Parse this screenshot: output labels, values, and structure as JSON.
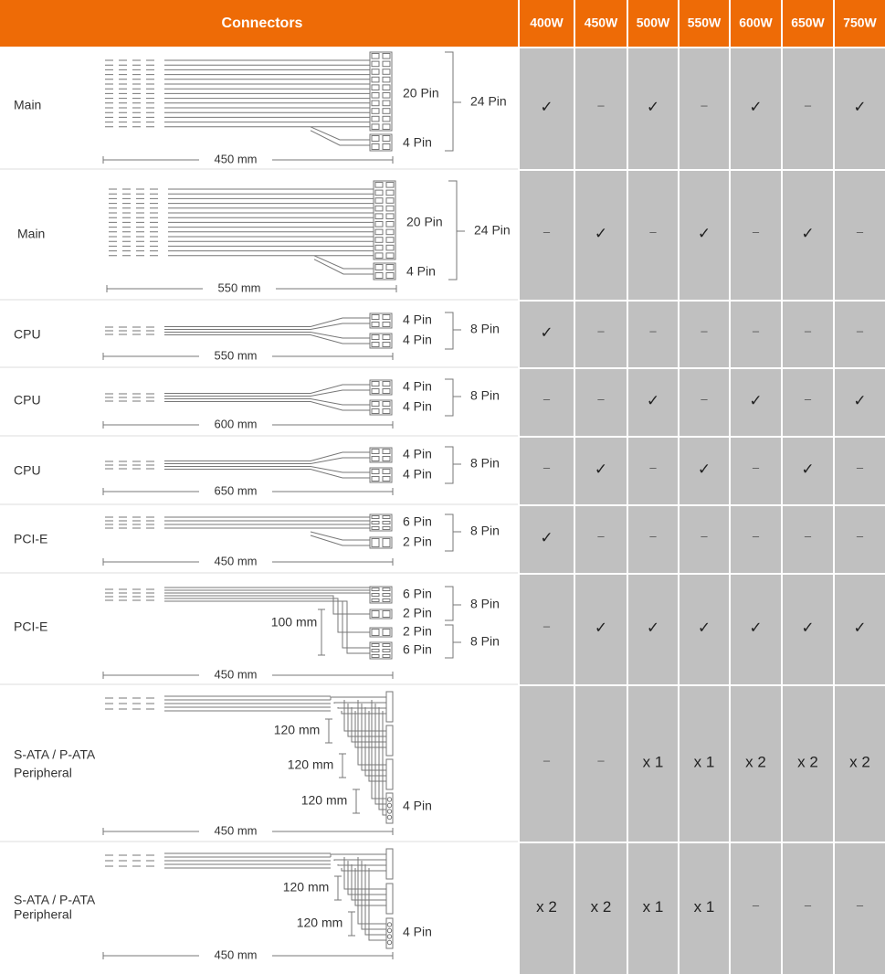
{
  "header": {
    "connectors": "Connectors",
    "models": [
      "400W",
      "450W",
      "500W",
      "550W",
      "600W",
      "650W",
      "750W"
    ]
  },
  "rows": [
    {
      "name": [
        "Main"
      ],
      "length": "450 mm",
      "pins": [
        "20 Pin",
        "4 Pin"
      ],
      "groups": [
        "24 Pin"
      ],
      "cells": [
        "✓",
        "–",
        "✓",
        "–",
        "✓",
        "–",
        "✓"
      ]
    },
    {
      "name": [
        "Main"
      ],
      "length": "550 mm",
      "pins": [
        "20 Pin",
        "4 Pin"
      ],
      "groups": [
        "24 Pin"
      ],
      "cells": [
        "–",
        "✓",
        "–",
        "✓",
        "–",
        "✓",
        "–"
      ]
    },
    {
      "name": [
        "CPU"
      ],
      "length": "550 mm",
      "pins": [
        "4 Pin",
        "4 Pin"
      ],
      "groups": [
        "8 Pin"
      ],
      "cells": [
        "✓",
        "–",
        "–",
        "–",
        "–",
        "–",
        "–"
      ]
    },
    {
      "name": [
        "CPU"
      ],
      "length": "600 mm",
      "pins": [
        "4 Pin",
        "4 Pin"
      ],
      "groups": [
        "8 Pin"
      ],
      "cells": [
        "–",
        "–",
        "✓",
        "–",
        "✓",
        "–",
        "✓"
      ]
    },
    {
      "name": [
        "CPU"
      ],
      "length": "650 mm",
      "pins": [
        "4 Pin",
        "4 Pin"
      ],
      "groups": [
        "8 Pin"
      ],
      "cells": [
        "–",
        "✓",
        "–",
        "✓",
        "–",
        "✓",
        "–"
      ]
    },
    {
      "name": [
        "PCI-E"
      ],
      "length": "450 mm",
      "pins": [
        "6 Pin",
        "2 Pin"
      ],
      "groups": [
        "8 Pin"
      ],
      "cells": [
        "✓",
        "–",
        "–",
        "–",
        "–",
        "–",
        "–"
      ]
    },
    {
      "name": [
        "PCI-E"
      ],
      "length": "450 mm",
      "pins": [
        "6 Pin",
        "2 Pin",
        "2 Pin",
        "6 Pin"
      ],
      "groups": [
        "8 Pin",
        "8 Pin"
      ],
      "segments": [
        "100 mm"
      ],
      "cells": [
        "–",
        "✓",
        "✓",
        "✓",
        "✓",
        "✓",
        "✓"
      ]
    },
    {
      "name": [
        "S-ATA / P-ATA",
        "Peripheral"
      ],
      "length": "450 mm",
      "pins": [
        "4 Pin"
      ],
      "segments": [
        "120 mm",
        "120 mm",
        "120 mm"
      ],
      "cells": [
        "–",
        "–",
        "x 1",
        "x 1",
        "x 2",
        "x 2",
        "x 2"
      ]
    },
    {
      "name": [
        "S-ATA / P-ATA",
        "Peripheral"
      ],
      "length": "450 mm",
      "pins": [
        "4 Pin"
      ],
      "segments": [
        "120 mm",
        "120 mm"
      ],
      "cells": [
        "x 2",
        "x 2",
        "x 1",
        "x 1",
        "–",
        "–",
        "–"
      ]
    }
  ]
}
